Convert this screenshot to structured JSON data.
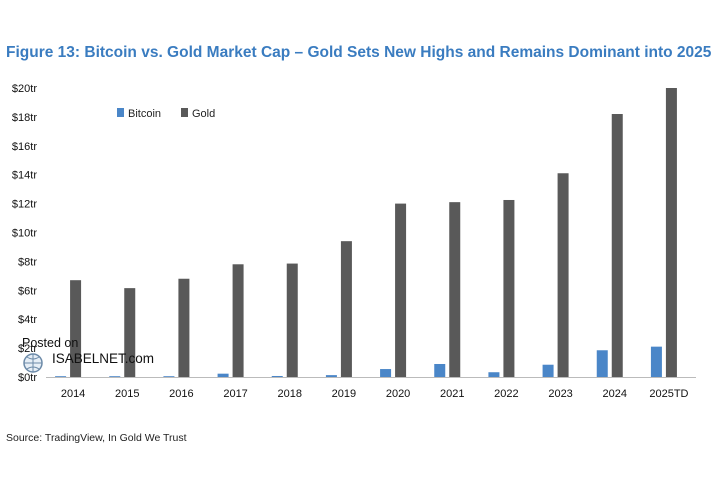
{
  "title": "Figure 13: Bitcoin vs. Gold Market Cap – Gold Sets New Highs and Remains Dominant into 2025",
  "source": "Source: TradingView, In Gold We Trust",
  "watermark": {
    "line1": "Posted on",
    "line2": "ISABELNET.com"
  },
  "colors": {
    "bitcoin": "#4a86c8",
    "gold": "#595959",
    "title": "#3a7cc0"
  },
  "chart_data": {
    "type": "bar",
    "title": "Figure 13: Bitcoin vs. Gold Market Cap – Gold Sets New Highs and Remains Dominant into 2025",
    "xlabel": "",
    "ylabel": "",
    "categories": [
      "2014",
      "2015",
      "2016",
      "2017",
      "2018",
      "2019",
      "2020",
      "2021",
      "2022",
      "2023",
      "2024",
      "2025TD"
    ],
    "series": [
      {
        "name": "Bitcoin",
        "values": [
          0.005,
          0.005,
          0.01,
          0.23,
          0.07,
          0.13,
          0.55,
          0.9,
          0.33,
          0.85,
          1.85,
          2.1
        ]
      },
      {
        "name": "Gold",
        "values": [
          6.7,
          6.15,
          6.8,
          7.8,
          7.85,
          9.4,
          12.0,
          12.1,
          12.25,
          14.1,
          18.2,
          20.0
        ]
      }
    ],
    "ylim": [
      0,
      20
    ],
    "yticks": [
      "$0tr",
      "$2tr",
      "$4tr",
      "$6tr",
      "$8tr",
      "$10tr",
      "$12tr",
      "$14tr",
      "$16tr",
      "$18tr",
      "$20tr"
    ],
    "legend": "top-left",
    "grid": false
  }
}
